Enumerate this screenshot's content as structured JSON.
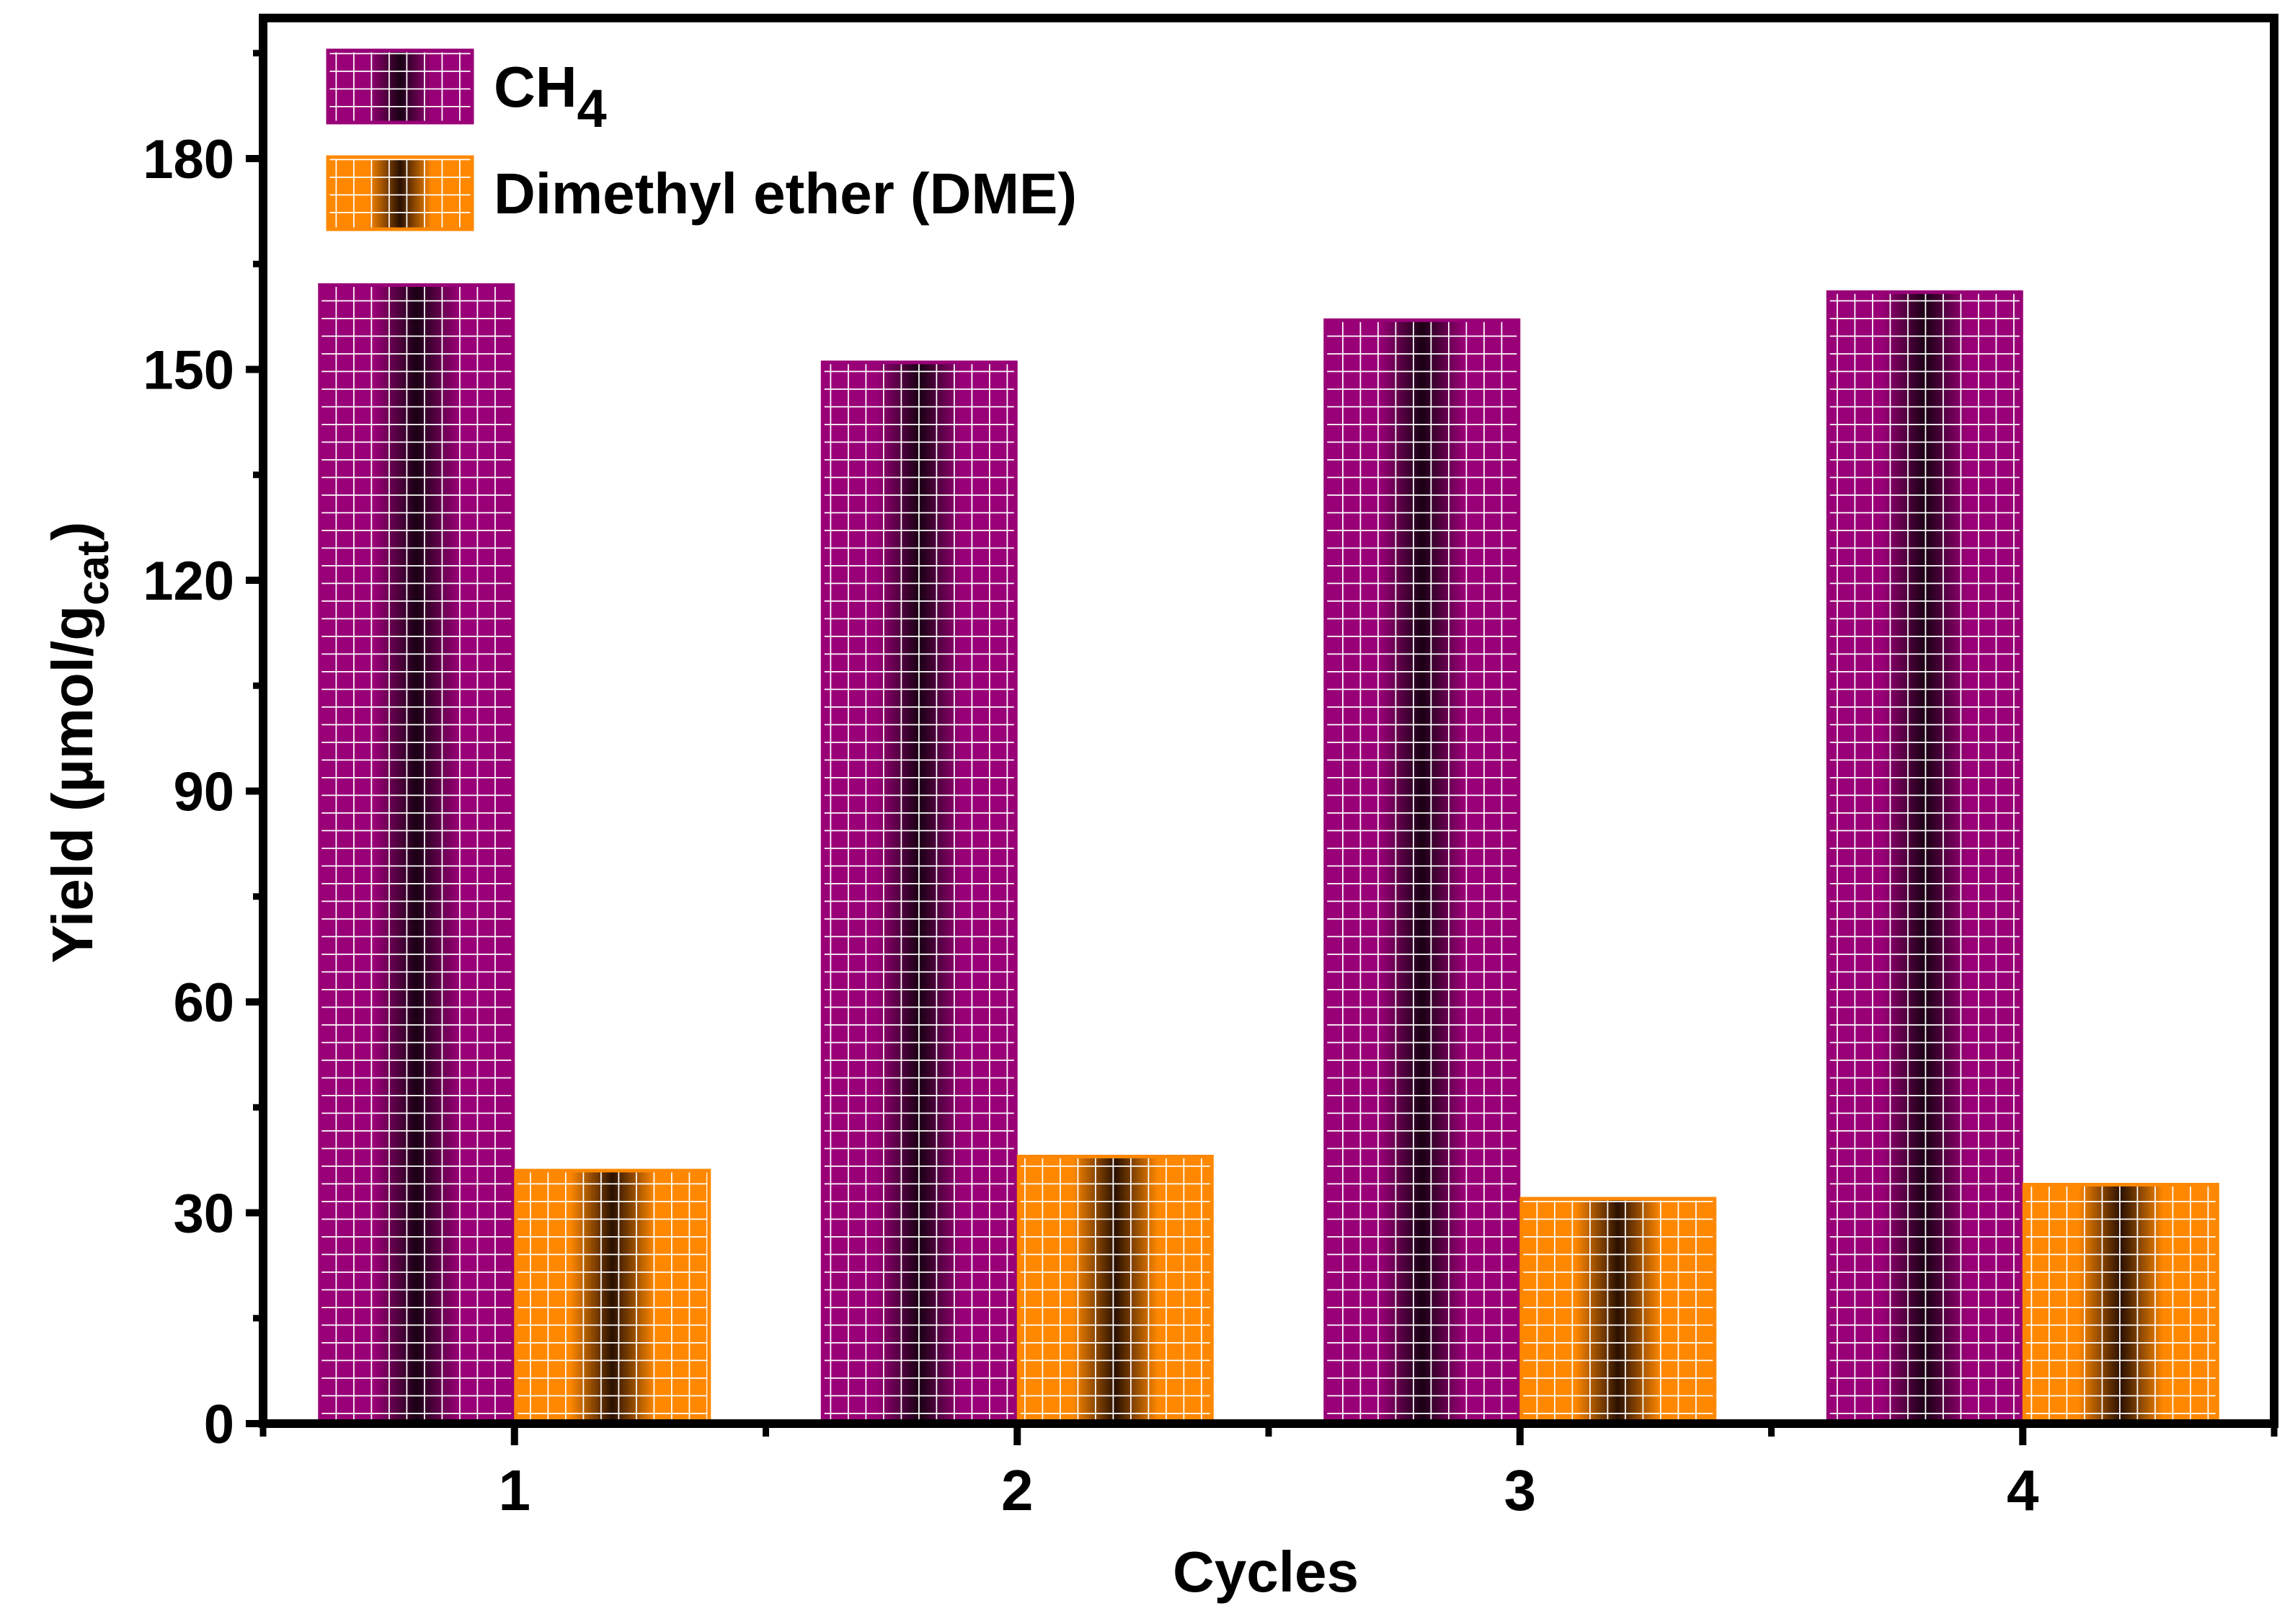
{
  "chart_data": {
    "type": "bar",
    "title": "",
    "xlabel": "Cycles",
    "ylabel": {
      "main": "Yield (µmol/g",
      "sub": "cat",
      "close": ")"
    },
    "categories": [
      "1",
      "2",
      "3",
      "4"
    ],
    "ylim": [
      0,
      200
    ],
    "yticks": [
      0,
      30,
      60,
      90,
      120,
      150,
      180
    ],
    "yticks_minor": [
      15,
      45,
      75,
      105,
      135,
      165,
      195
    ],
    "grid": false,
    "legend_position": "top-left",
    "series": [
      {
        "name": "CH4",
        "label_main": "CH",
        "label_sub": "4",
        "values": [
          162,
          151,
          157,
          161
        ],
        "color": "#990077",
        "hatch_dark": "#1a0014"
      },
      {
        "name": "Dimethyl ether (DME)",
        "label_main": "Dimethyl ether (DME)",
        "label_sub": "",
        "values": [
          36,
          38,
          32,
          34
        ],
        "color": "#ff8800",
        "hatch_dark": "#2a1000"
      }
    ]
  }
}
